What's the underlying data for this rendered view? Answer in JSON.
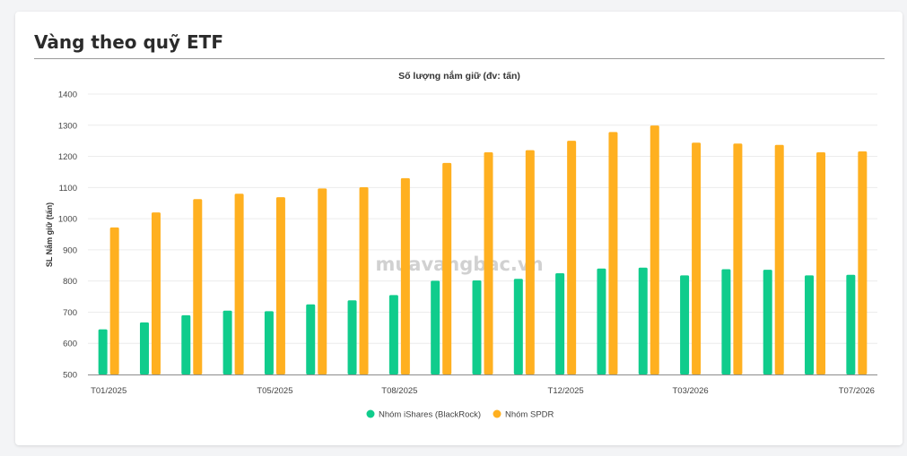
{
  "page": {
    "title": "Vàng theo quỹ ETF",
    "watermark": "muavangbac.vn"
  },
  "chart_data": {
    "type": "bar",
    "title": "Số lượng nắm giữ (đv: tấn)",
    "ylabel": "SL Nắm giữ (tấn)",
    "xlabel": "",
    "ylim": [
      500,
      1400
    ],
    "yticks": [
      500,
      600,
      700,
      800,
      900,
      1000,
      1100,
      1200,
      1300,
      1400
    ],
    "grid": true,
    "legend_position": "bottom",
    "categories": [
      "T01/2025",
      "T02/2025",
      "T03/2025",
      "T04/2025",
      "T05/2025",
      "T06/2025",
      "T07/2025",
      "T08/2025",
      "T09/2025",
      "T10/2025",
      "T11/2025",
      "T12/2025",
      "T01/2026",
      "T02/2026",
      "T03/2026",
      "T04/2026",
      "T05/2026",
      "T06/2026",
      "T07/2026"
    ],
    "xtick_labels": [
      "T01/2025",
      "",
      "",
      "",
      "T05/2025",
      "",
      "",
      "T08/2025",
      "",
      "",
      "",
      "T12/2025",
      "",
      "",
      "T03/2026",
      "",
      "",
      "",
      "T07/2026"
    ],
    "series": [
      {
        "name": "Nhóm iShares (BlackRock)",
        "color": "#10cc8c",
        "values": [
          645,
          667,
          690,
          705,
          703,
          725,
          738,
          755,
          801,
          802,
          807,
          825,
          840,
          843,
          818,
          838,
          836,
          818,
          820
        ]
      },
      {
        "name": "Nhóm SPDR",
        "color": "#ffb020",
        "values": [
          972,
          1020,
          1063,
          1080,
          1069,
          1097,
          1101,
          1130,
          1179,
          1213,
          1220,
          1250,
          1278,
          1299,
          1244,
          1241,
          1237,
          1213,
          1216
        ]
      }
    ]
  }
}
